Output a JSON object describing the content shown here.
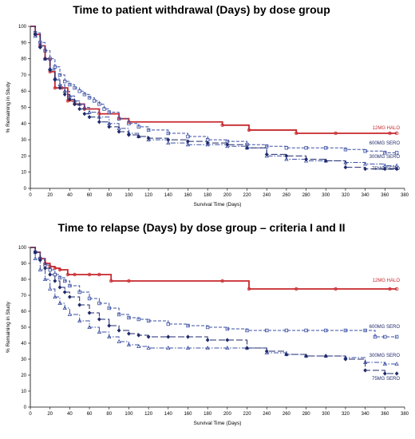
{
  "chart_data": [
    {
      "type": "line",
      "subtype": "kaplan-meier",
      "title": "Time to patient withdrawal (Days) by dose group",
      "xlabel": "Survival Time (Days)",
      "ylabel": "% Remaining in Study",
      "xlim": [
        0,
        380
      ],
      "ylim": [
        0,
        100
      ],
      "xticks": [
        "0",
        "20",
        "40",
        "60",
        "80",
        "100",
        "120",
        "140",
        "160",
        "180",
        "200",
        "220",
        "240",
        "260",
        "280",
        "300",
        "320",
        "340",
        "360",
        "380"
      ],
      "yticks": [
        "0",
        "10",
        "20",
        "30",
        "40",
        "50",
        "60",
        "70",
        "80",
        "90",
        "100"
      ],
      "grid": false,
      "series": [
        {
          "name": "12MG HALO",
          "color": "#c8282d",
          "dash": "solid",
          "marker": "circle",
          "x": [
            0,
            5,
            10,
            15,
            20,
            25,
            32,
            38,
            45,
            55,
            70,
            90,
            100,
            195,
            222,
            270,
            310,
            365,
            372
          ],
          "y": [
            100,
            95,
            88,
            80,
            72,
            62,
            62,
            54,
            52,
            49,
            46,
            43,
            41,
            39,
            36,
            34,
            34,
            34,
            34
          ]
        },
        {
          "name": "600MG SERO",
          "color": "#3b4fa3",
          "dash": "dashed",
          "marker": "square",
          "x": [
            0,
            5,
            10,
            15,
            20,
            25,
            30,
            35,
            40,
            45,
            50,
            55,
            60,
            65,
            70,
            75,
            80,
            90,
            100,
            110,
            120,
            140,
            160,
            180,
            200,
            220,
            240,
            260,
            280,
            300,
            320,
            340,
            360,
            372
          ],
          "y": [
            100,
            96,
            90,
            85,
            80,
            75,
            70,
            66,
            64,
            62,
            60,
            58,
            56,
            54,
            52,
            49,
            47,
            43,
            40,
            38,
            36,
            34,
            32,
            30,
            29,
            27,
            26,
            25,
            25,
            25,
            24,
            23,
            22,
            22
          ]
        },
        {
          "name": "300MG SERO",
          "color": "#3b4fa3",
          "dash": "dashdot",
          "marker": "triangle",
          "x": [
            0,
            5,
            10,
            15,
            20,
            25,
            30,
            35,
            40,
            45,
            50,
            55,
            60,
            70,
            80,
            90,
            100,
            110,
            120,
            140,
            160,
            180,
            200,
            220,
            240,
            260,
            280,
            300,
            320,
            340,
            360,
            372
          ],
          "y": [
            100,
            94,
            88,
            80,
            74,
            68,
            64,
            60,
            57,
            54,
            52,
            50,
            47,
            44,
            40,
            37,
            34,
            32,
            30,
            28,
            27,
            27,
            26,
            25,
            20,
            18,
            17,
            17,
            16,
            15,
            14,
            14
          ]
        },
        {
          "name": "75MG SERO",
          "color": "#1f2a6b",
          "dash": "longdash",
          "marker": "diamond",
          "x": [
            0,
            5,
            10,
            15,
            20,
            25,
            30,
            35,
            40,
            45,
            50,
            55,
            60,
            70,
            80,
            90,
            100,
            110,
            120,
            140,
            160,
            180,
            200,
            220,
            240,
            260,
            280,
            300,
            320,
            340,
            360,
            372
          ],
          "y": [
            100,
            95,
            87,
            80,
            73,
            67,
            62,
            58,
            55,
            52,
            49,
            46,
            44,
            41,
            38,
            35,
            33,
            32,
            31,
            30,
            29,
            28,
            27,
            25,
            21,
            20,
            18,
            17,
            13,
            12,
            12,
            12
          ]
        }
      ]
    },
    {
      "type": "line",
      "subtype": "kaplan-meier",
      "title": "Time to relapse (Days) by dose group – criteria I and II",
      "xlabel": "Survival Time (Days)",
      "ylabel": "% Remaining in Study",
      "xlim": [
        0,
        380
      ],
      "ylim": [
        0,
        100
      ],
      "xticks": [
        "0",
        "20",
        "40",
        "60",
        "80",
        "100",
        "120",
        "140",
        "160",
        "180",
        "200",
        "220",
        "240",
        "260",
        "280",
        "300",
        "320",
        "340",
        "360",
        "380"
      ],
      "yticks": [
        "0",
        "10",
        "20",
        "30",
        "40",
        "50",
        "60",
        "70",
        "80",
        "90",
        "100"
      ],
      "grid": false,
      "series": [
        {
          "name": "12MG HALO",
          "color": "#c8282d",
          "dash": "solid",
          "marker": "circle",
          "x": [
            0,
            5,
            10,
            15,
            20,
            25,
            30,
            38,
            45,
            60,
            70,
            82,
            100,
            195,
            222,
            270,
            310,
            365,
            372
          ],
          "y": [
            100,
            97,
            93,
            90,
            88,
            87,
            86,
            83,
            83,
            83,
            83,
            79,
            79,
            79,
            74,
            74,
            74,
            74,
            74
          ]
        },
        {
          "name": "600MG SERO",
          "color": "#3b4fa3",
          "dash": "dashed",
          "marker": "square",
          "x": [
            0,
            5,
            10,
            15,
            20,
            25,
            30,
            35,
            40,
            50,
            60,
            70,
            80,
            90,
            100,
            110,
            120,
            140,
            160,
            180,
            200,
            220,
            240,
            260,
            280,
            300,
            320,
            340,
            350,
            360,
            372
          ],
          "y": [
            100,
            97,
            93,
            89,
            86,
            83,
            81,
            79,
            76,
            72,
            68,
            65,
            62,
            58,
            56,
            55,
            54,
            52,
            51,
            50,
            49,
            48,
            48,
            48,
            48,
            48,
            48,
            48,
            44,
            44,
            44
          ]
        },
        {
          "name": "300MG SERO",
          "color": "#3b4fa3",
          "dash": "dashdot",
          "marker": "triangle",
          "x": [
            0,
            5,
            10,
            15,
            20,
            25,
            30,
            35,
            40,
            50,
            60,
            70,
            80,
            90,
            100,
            110,
            120,
            140,
            160,
            180,
            200,
            220,
            240,
            260,
            280,
            300,
            320,
            340,
            360,
            372
          ],
          "y": [
            100,
            93,
            86,
            80,
            74,
            69,
            65,
            62,
            58,
            54,
            50,
            47,
            44,
            41,
            39,
            38,
            37,
            37,
            37,
            37,
            37,
            37,
            34,
            33,
            32,
            32,
            31,
            28,
            27,
            27
          ]
        },
        {
          "name": "75MG SERO",
          "color": "#1f2a6b",
          "dash": "longdash",
          "marker": "diamond",
          "x": [
            0,
            5,
            10,
            15,
            20,
            25,
            30,
            35,
            40,
            50,
            60,
            70,
            80,
            90,
            100,
            110,
            120,
            140,
            160,
            180,
            200,
            220,
            240,
            260,
            280,
            300,
            320,
            340,
            360,
            372
          ],
          "y": [
            100,
            97,
            92,
            87,
            83,
            79,
            75,
            72,
            69,
            64,
            59,
            55,
            51,
            48,
            46,
            45,
            44,
            44,
            44,
            42,
            42,
            37,
            35,
            33,
            32,
            32,
            30,
            23,
            21,
            21
          ]
        }
      ]
    }
  ]
}
